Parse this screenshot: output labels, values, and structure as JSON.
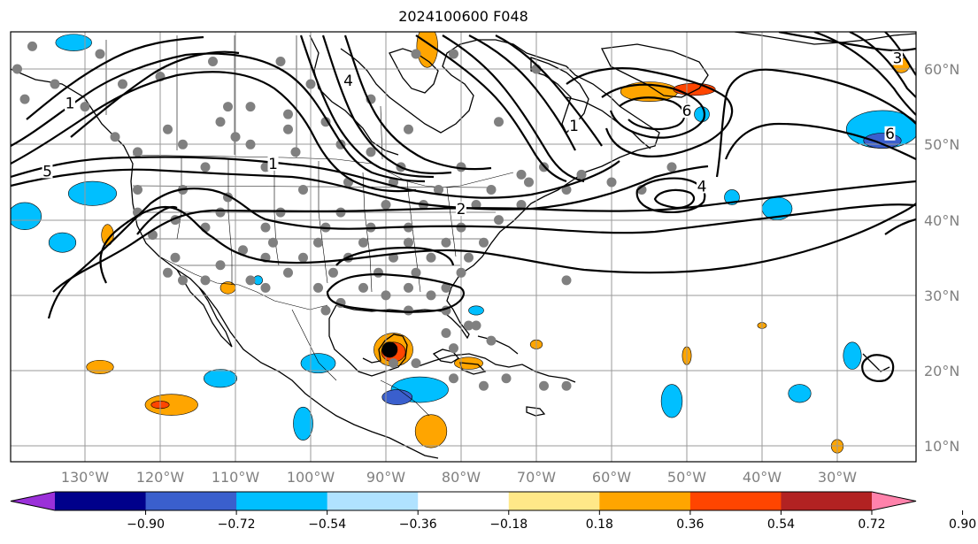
{
  "title": "2024100600 F048",
  "lon_labels": [
    "130°W",
    "120°W",
    "110°W",
    "100°W",
    "90°W",
    "80°W",
    "70°W",
    "60°W",
    "50°W",
    "40°W",
    "30°W"
  ],
  "lat_labels": [
    "60°N",
    "50°N",
    "40°N",
    "30°N",
    "20°N",
    "10°N"
  ],
  "colorbar": {
    "colors": [
      "#9b30d9",
      "#00008b",
      "#3a5fcd",
      "#00bfff",
      "#b0e2ff",
      "#ffffff",
      "#ffe888",
      "#ffa500",
      "#ff4500",
      "#b22222",
      "#ff82ab"
    ],
    "ticks": [
      "−0.90",
      "−0.72",
      "−0.54",
      "−0.36",
      "−0.18",
      "0.18",
      "0.36",
      "0.54",
      "0.72",
      "0.90"
    ],
    "tick_values": [
      -0.9,
      -0.72,
      -0.54,
      -0.36,
      -0.18,
      0.18,
      0.36,
      0.54,
      0.72,
      0.9
    ]
  },
  "contour_labels": [
    {
      "text": "1",
      "lon": -105,
      "lat": 47
    },
    {
      "text": "2",
      "lon": -80,
      "lat": 41
    },
    {
      "text": "4",
      "lon": -48,
      "lat": 44
    },
    {
      "text": "6",
      "lon": -50,
      "lat": 54
    },
    {
      "text": "6",
      "lon": -23,
      "lat": 51
    },
    {
      "text": "3",
      "lon": -22,
      "lat": 61
    },
    {
      "text": "1",
      "lon": -132,
      "lat": 55
    },
    {
      "text": "5",
      "lon": -135,
      "lat": 46
    },
    {
      "text": "4",
      "lon": -95,
      "lat": 58
    },
    {
      "text": "1",
      "lon": -65,
      "lat": 52
    }
  ],
  "marker": {
    "lon": -89.5,
    "lat": 22.8
  },
  "stations": [
    [
      -137,
      63
    ],
    [
      -128,
      62
    ],
    [
      -113,
      61
    ],
    [
      -104,
      61
    ],
    [
      -86,
      62
    ],
    [
      -81,
      62
    ],
    [
      -70,
      60
    ],
    [
      -120,
      59
    ],
    [
      -100,
      58
    ],
    [
      -111,
      55
    ],
    [
      -108,
      55
    ],
    [
      -92,
      56
    ],
    [
      -130,
      55
    ],
    [
      -103,
      54
    ],
    [
      -112,
      53
    ],
    [
      -98,
      53
    ],
    [
      -119,
      52
    ],
    [
      -103,
      52
    ],
    [
      -110,
      51
    ],
    [
      -87,
      52
    ],
    [
      -75,
      53
    ],
    [
      -96,
      50
    ],
    [
      -117,
      50
    ],
    [
      -126,
      51
    ],
    [
      -108,
      50
    ],
    [
      -92,
      49
    ],
    [
      -123,
      49
    ],
    [
      -102,
      49
    ],
    [
      -114,
      47
    ],
    [
      -106,
      47
    ],
    [
      -88,
      47
    ],
    [
      -80,
      47
    ],
    [
      -69,
      47
    ],
    [
      -72,
      46
    ],
    [
      -64,
      46
    ],
    [
      -60,
      45
    ],
    [
      -52,
      47
    ],
    [
      -66,
      44
    ],
    [
      -71,
      45
    ],
    [
      -76,
      44
    ],
    [
      -83,
      44
    ],
    [
      -89,
      45
    ],
    [
      -95,
      45
    ],
    [
      -101,
      44
    ],
    [
      -111,
      43
    ],
    [
      -117,
      44
    ],
    [
      -123,
      44
    ],
    [
      -56,
      44
    ],
    [
      -72,
      42
    ],
    [
      -78,
      42
    ],
    [
      -85,
      42
    ],
    [
      -90,
      42
    ],
    [
      -96,
      41
    ],
    [
      -104,
      41
    ],
    [
      -112,
      41
    ],
    [
      -118,
      40
    ],
    [
      -123,
      41
    ],
    [
      -75,
      40
    ],
    [
      -80,
      39
    ],
    [
      -87,
      39
    ],
    [
      -92,
      39
    ],
    [
      -98,
      39
    ],
    [
      -106,
      39
    ],
    [
      -114,
      39
    ],
    [
      -121,
      38
    ],
    [
      -77,
      37
    ],
    [
      -82,
      37
    ],
    [
      -87,
      37
    ],
    [
      -93,
      37
    ],
    [
      -99,
      37
    ],
    [
      -105,
      37
    ],
    [
      -109,
      36
    ],
    [
      -118,
      35
    ],
    [
      -79,
      35
    ],
    [
      -84,
      35
    ],
    [
      -89,
      35
    ],
    [
      -95,
      35
    ],
    [
      -101,
      35
    ],
    [
      -106,
      35
    ],
    [
      -112,
      34
    ],
    [
      -119,
      33
    ],
    [
      -80,
      33
    ],
    [
      -86,
      33
    ],
    [
      -91,
      33
    ],
    [
      -97,
      33
    ],
    [
      -103,
      33
    ],
    [
      -108,
      32
    ],
    [
      -114,
      32
    ],
    [
      -82,
      31
    ],
    [
      -87,
      31
    ],
    [
      -93,
      31
    ],
    [
      -99,
      31
    ],
    [
      -106,
      31
    ],
    [
      -117,
      32
    ],
    [
      -66,
      32
    ],
    [
      -84,
      30
    ],
    [
      -90,
      30
    ],
    [
      -96,
      29
    ],
    [
      -98,
      28
    ],
    [
      -82,
      28
    ],
    [
      -87,
      28
    ],
    [
      -78,
      26
    ],
    [
      -82,
      25
    ],
    [
      -79,
      26
    ],
    [
      -76,
      24
    ],
    [
      -81,
      23
    ],
    [
      -86,
      21
    ],
    [
      -89,
      21
    ],
    [
      -81,
      19
    ],
    [
      -74,
      19
    ],
    [
      -69,
      18
    ],
    [
      -66,
      18
    ],
    [
      -77,
      18
    ],
    [
      -139,
      60
    ],
    [
      -134,
      58
    ],
    [
      -125,
      58
    ],
    [
      -138,
      56
    ]
  ],
  "anomaly_patches": [
    {
      "lon": -131.5,
      "lat": 63.5,
      "rx": 2.4,
      "ry": 1.1,
      "v": -0.4
    },
    {
      "lon": -129,
      "lat": 43.5,
      "rx": 3.2,
      "ry": 1.6,
      "v": -0.45
    },
    {
      "lon": -138,
      "lat": 40.5,
      "rx": 2.2,
      "ry": 1.8,
      "v": -0.4
    },
    {
      "lon": -133,
      "lat": 37,
      "rx": 1.8,
      "ry": 1.3,
      "v": -0.4
    },
    {
      "lon": -84.5,
      "lat": 63,
      "rx": 1.4,
      "ry": 2.8,
      "v": 0.45
    },
    {
      "lon": -55,
      "lat": 57,
      "rx": 3.8,
      "ry": 1.3,
      "v": 0.5
    },
    {
      "lon": -49,
      "lat": 57.3,
      "rx": 2.8,
      "ry": 0.8,
      "v": 0.65
    },
    {
      "lon": -24,
      "lat": 52,
      "rx": 4.8,
      "ry": 2.5,
      "v": -0.45
    },
    {
      "lon": -24,
      "lat": 50.5,
      "rx": 2.5,
      "ry": 1,
      "v": -0.6
    },
    {
      "lon": -21.5,
      "lat": 60.5,
      "rx": 1.1,
      "ry": 1,
      "v": 0.5
    },
    {
      "lon": -48,
      "lat": 54,
      "rx": 1,
      "ry": 1,
      "v": -0.4
    },
    {
      "lon": -44,
      "lat": 43,
      "rx": 1,
      "ry": 1,
      "v": -0.4
    },
    {
      "lon": -38,
      "lat": 41.5,
      "rx": 2,
      "ry": 1.5,
      "v": -0.4
    },
    {
      "lon": -127,
      "lat": 38,
      "rx": 0.8,
      "ry": 1.4,
      "v": 0.45
    },
    {
      "lon": -111,
      "lat": 31,
      "rx": 1,
      "ry": 0.8,
      "v": 0.5
    },
    {
      "lon": -89,
      "lat": 22.8,
      "rx": 2.6,
      "ry": 2.2,
      "v": 0.5
    },
    {
      "lon": -89,
      "lat": 22.5,
      "rx": 1.6,
      "ry": 1.3,
      "v": 0.65
    },
    {
      "lon": -85.5,
      "lat": 17.5,
      "rx": 3.8,
      "ry": 1.7,
      "v": -0.4
    },
    {
      "lon": -88.5,
      "lat": 16.5,
      "rx": 2,
      "ry": 1,
      "v": -0.6
    },
    {
      "lon": -99,
      "lat": 21,
      "rx": 2.3,
      "ry": 1.3,
      "v": -0.4
    },
    {
      "lon": -112,
      "lat": 19,
      "rx": 2.2,
      "ry": 1.2,
      "v": -0.4
    },
    {
      "lon": -118.5,
      "lat": 15.5,
      "rx": 3.5,
      "ry": 1.4,
      "v": 0.45
    },
    {
      "lon": -120,
      "lat": 15.5,
      "rx": 1.2,
      "ry": 0.5,
      "v": 0.65
    },
    {
      "lon": -101,
      "lat": 13,
      "rx": 1.3,
      "ry": 2.2,
      "v": -0.4
    },
    {
      "lon": -84,
      "lat": 12,
      "rx": 2.1,
      "ry": 2.2,
      "v": 0.45
    },
    {
      "lon": -79,
      "lat": 21,
      "rx": 1.9,
      "ry": 0.8,
      "v": 0.45
    },
    {
      "lon": -128,
      "lat": 20.5,
      "rx": 1.8,
      "ry": 0.9,
      "v": 0.45
    },
    {
      "lon": -107,
      "lat": 32,
      "rx": 0.6,
      "ry": 0.6,
      "v": -0.4
    },
    {
      "lon": -78,
      "lat": 28,
      "rx": 1,
      "ry": 0.6,
      "v": -0.4
    },
    {
      "lon": -50,
      "lat": 22,
      "rx": 0.6,
      "ry": 1.2,
      "v": 0.45
    },
    {
      "lon": -52,
      "lat": 16,
      "rx": 1.4,
      "ry": 2.2,
      "v": -0.4
    },
    {
      "lon": -28,
      "lat": 22,
      "rx": 1.2,
      "ry": 1.8,
      "v": -0.4
    },
    {
      "lon": -35,
      "lat": 17,
      "rx": 1.5,
      "ry": 1.2,
      "v": -0.4
    },
    {
      "lon": -30,
      "lat": 10,
      "rx": 0.8,
      "ry": 0.9,
      "v": 0.5
    },
    {
      "lon": -40,
      "lat": 26,
      "rx": 0.6,
      "ry": 0.4,
      "v": 0.45
    },
    {
      "lon": -70,
      "lat": 23.5,
      "rx": 0.8,
      "ry": 0.6,
      "v": 0.45
    },
    {
      "lon": -89,
      "lat": 23,
      "rx": 0.5,
      "ry": 0.5,
      "v": 0.8
    }
  ]
}
